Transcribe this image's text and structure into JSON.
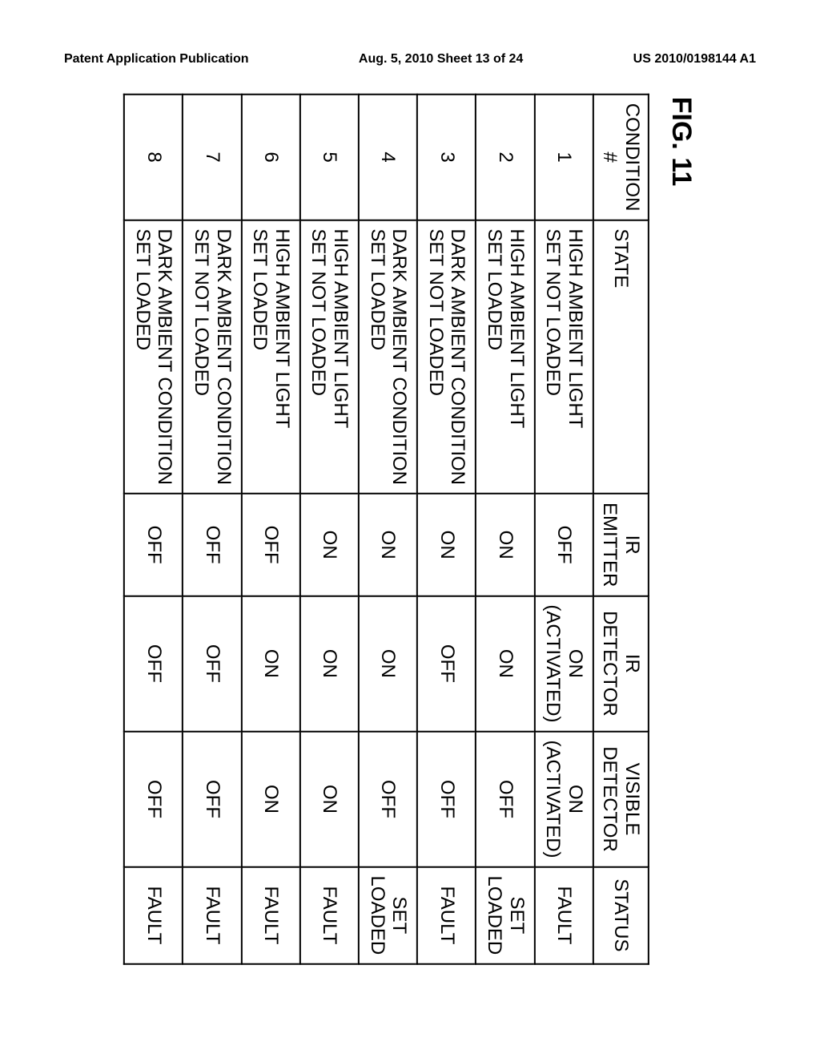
{
  "header": {
    "left": "Patent Application Publication",
    "center": "Aug. 5, 2010  Sheet 13 of 24",
    "right": "US 2010/0198144 A1"
  },
  "figure_label": "FIG. 11",
  "table": {
    "headers": {
      "condition": "CONDITION #",
      "state": "STATE",
      "emitter": "IR EMITTER",
      "ir_detector": "IR DETECTOR",
      "visible_detector_line1": "VISIBLE",
      "visible_detector_line2": "DETECTOR",
      "status": "STATUS"
    },
    "rows": [
      {
        "condition": "1",
        "state_line1": "HIGH AMBIENT LIGHT",
        "state_line2": "SET NOT LOADED",
        "emitter": "OFF",
        "ir_detector_line1": "ON",
        "ir_detector_line2": "(ACTIVATED)",
        "visible_line1": "ON",
        "visible_line2": "(ACTIVATED)",
        "status_line1": "FAULT",
        "status_line2": ""
      },
      {
        "condition": "2",
        "state_line1": "HIGH AMBIENT LIGHT",
        "state_line2": "SET LOADED",
        "emitter": "ON",
        "ir_detector_line1": "ON",
        "ir_detector_line2": "",
        "visible_line1": "OFF",
        "visible_line2": "",
        "status_line1": "SET",
        "status_line2": "LOADED"
      },
      {
        "condition": "3",
        "state_line1": "DARK  AMBIENT CONDITION",
        "state_line2": "SET NOT LOADED",
        "emitter": "ON",
        "ir_detector_line1": "OFF",
        "ir_detector_line2": "",
        "visible_line1": "OFF",
        "visible_line2": "",
        "status_line1": "FAULT",
        "status_line2": ""
      },
      {
        "condition": "4",
        "state_line1": "DARK  AMBIENT CONDITION",
        "state_line2": "SET LOADED",
        "emitter": "ON",
        "ir_detector_line1": "ON",
        "ir_detector_line2": "",
        "visible_line1": "OFF",
        "visible_line2": "",
        "status_line1": "SET",
        "status_line2": "LOADED"
      },
      {
        "condition": "5",
        "state_line1": "HIGH AMBIENT LIGHT",
        "state_line2": "SET NOT LOADED",
        "emitter": "ON",
        "ir_detector_line1": "ON",
        "ir_detector_line2": "",
        "visible_line1": "ON",
        "visible_line2": "",
        "status_line1": "FAULT",
        "status_line2": ""
      },
      {
        "condition": "6",
        "state_line1": "HIGH AMBIENT LIGHT",
        "state_line2": "SET LOADED",
        "emitter": "OFF",
        "ir_detector_line1": "ON",
        "ir_detector_line2": "",
        "visible_line1": "ON",
        "visible_line2": "",
        "status_line1": "FAULT",
        "status_line2": ""
      },
      {
        "condition": "7",
        "state_line1": "DARK  AMBIENT CONDITION",
        "state_line2": "SET NOT LOADED",
        "emitter": "OFF",
        "ir_detector_line1": "OFF",
        "ir_detector_line2": "",
        "visible_line1": "OFF",
        "visible_line2": "",
        "status_line1": "FAULT",
        "status_line2": ""
      },
      {
        "condition": "8",
        "state_line1": "DARK  AMBIENT CONDITION",
        "state_line2": "SET LOADED",
        "emitter": "OFF",
        "ir_detector_line1": "OFF",
        "ir_detector_line2": "",
        "visible_line1": "OFF",
        "visible_line2": "",
        "status_line1": "FAULT",
        "status_line2": ""
      }
    ]
  }
}
